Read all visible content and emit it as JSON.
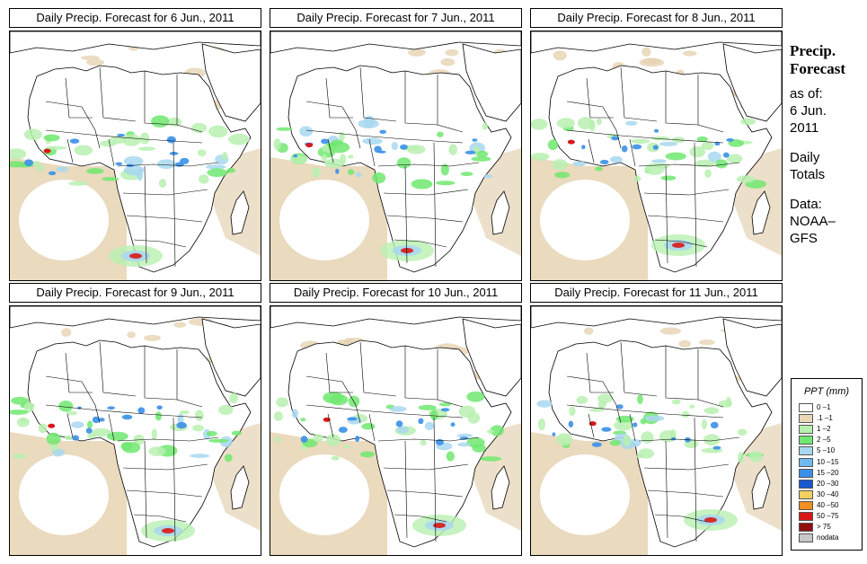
{
  "panels": [
    {
      "title": "Daily Precip. Forecast for  6 Jun., 2011"
    },
    {
      "title": "Daily Precip. Forecast for  7 Jun., 2011"
    },
    {
      "title": "Daily Precip. Forecast for  8 Jun., 2011"
    },
    {
      "title": "Daily Precip. Forecast for  9 Jun., 2011"
    },
    {
      "title": "Daily Precip. Forecast for  10 Jun., 2011"
    },
    {
      "title": "Daily Precip. Forecast for  11 Jun., 2011"
    }
  ],
  "side": {
    "title1": "Precip.",
    "title2": "Forecast",
    "asof1": "as of:",
    "asof2": "6 Jun.",
    "asof3": "2011",
    "daily1": "Daily",
    "daily2": "Totals",
    "data1": "Data:",
    "data2": "NOAA–",
    "data3": "GFS"
  },
  "legend": {
    "title": "PPT (mm)",
    "items": [
      {
        "label": "0 –1",
        "color": "#ffffff"
      },
      {
        "label": ".1 –1",
        "color": "#e8d8b8"
      },
      {
        "label": "1 –2",
        "color": "#b8f0b0"
      },
      {
        "label": "2 –5",
        "color": "#70e870"
      },
      {
        "label": "5 –10",
        "color": "#a8d8f0"
      },
      {
        "label": "10 –15",
        "color": "#70b8f0"
      },
      {
        "label": "15 –20",
        "color": "#3890e8"
      },
      {
        "label": "20 –30",
        "color": "#1858d0"
      },
      {
        "label": "30 –40",
        "color": "#f0d060"
      },
      {
        "label": "40 –50",
        "color": "#f09020"
      },
      {
        "label": "50 –75",
        "color": "#d81818"
      },
      {
        "label": "> 75",
        "color": "#901010"
      },
      {
        "label": "nodata",
        "color": "#c8c8c8"
      }
    ]
  },
  "colors": {
    "desert": "#e6d3b3",
    "light_green": "#b8f0b0",
    "green": "#70e870",
    "light_blue": "#a8d8f0",
    "blue": "#3890e8",
    "red": "#d81818"
  }
}
